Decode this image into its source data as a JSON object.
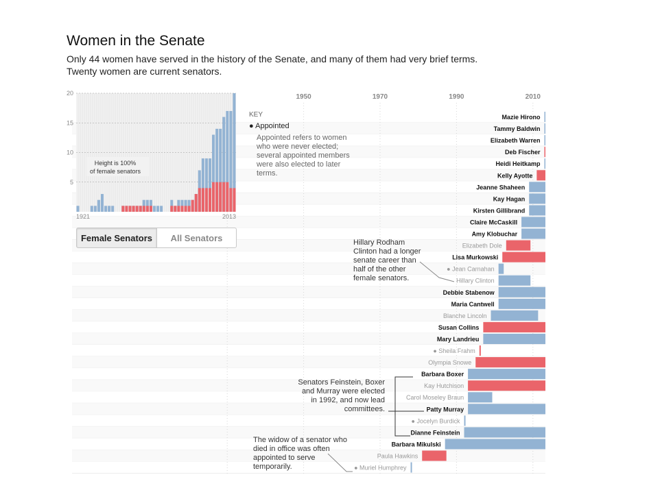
{
  "header": {
    "title": "Women in the Senate",
    "subtitle": "Only 44 women have served in the history of the Senate, and many of them had very brief terms. Twenty women are current senators."
  },
  "toggle": {
    "female_label": "Female Senators",
    "all_label": "All Senators",
    "active": "female"
  },
  "key": {
    "heading": "KEY",
    "bullet_label": "Appointed",
    "description": "Appointed refers to women who were never elected; several appointed members were also elected to later terms."
  },
  "annotations": {
    "clinton": "Hillary Rodham Clinton had a longer senate career than half of the other female senators.",
    "committees": "Senators Feinstein, Boxer and Murray were elected in 1992, and now lead committees.",
    "widow": "The widow of a senator who died in office was often appointed to serve temporarily."
  },
  "colors": {
    "elected": "#93b3d3",
    "appointed": "#ea646a",
    "grid": "#e6e6e6"
  },
  "chart_data": [
    {
      "type": "bar",
      "note": "Height is 100% of female senators",
      "x_tick_labels": [
        "1921",
        "2013"
      ],
      "y_ticks": [
        5,
        10,
        15,
        20
      ],
      "ylim": [
        0,
        20
      ],
      "x": [
        1921,
        1925,
        1927,
        1929,
        1931,
        1933,
        1935,
        1937,
        1939,
        1941,
        1943,
        1945,
        1947,
        1949,
        1951,
        1953,
        1955,
        1957,
        1959,
        1961,
        1963,
        1965,
        1967,
        1969,
        1971,
        1973,
        1975,
        1977,
        1979,
        1981,
        1983,
        1985,
        1987,
        1989,
        1991,
        1993,
        1995,
        1997,
        1999,
        2001,
        2003,
        2005,
        2007,
        2009,
        2011,
        2013
      ],
      "series": [
        {
          "values": [
            1,
            0,
            0,
            0,
            1,
            1,
            2,
            3,
            1,
            1,
            1,
            0,
            0,
            1,
            1,
            1,
            1,
            1,
            1,
            2,
            2,
            2,
            1,
            1,
            1,
            0,
            0,
            2,
            1,
            2,
            2,
            2,
            2,
            2,
            3,
            7,
            9,
            9,
            9,
            13,
            14,
            14,
            16,
            17,
            17,
            20
          ]
        },
        {
          "values": [
            0,
            0,
            0,
            0,
            0,
            0,
            0,
            0,
            0,
            0,
            0,
            0,
            0,
            1,
            1,
            1,
            1,
            1,
            1,
            1,
            1,
            1,
            0,
            0,
            0,
            0,
            0,
            1,
            1,
            1,
            1,
            1,
            1,
            2,
            3,
            4,
            4,
            4,
            4,
            5,
            5,
            5,
            5,
            5,
            4,
            4
          ]
        }
      ]
    },
    {
      "type": "bar",
      "x_axis_labels": [
        "1950",
        "1970",
        "1990",
        "2010"
      ],
      "categories": [
        "Mazie Hirono",
        "Tammy Baldwin",
        "Elizabeth Warren",
        "Deb Fischer",
        "Heidi Heitkamp",
        "Kelly Ayotte",
        "Jeanne Shaheen",
        "Kay Hagan",
        "Kirsten Gillibrand",
        "Claire McCaskill",
        "Amy Klobuchar",
        "Elizabeth Dole",
        "Lisa Murkowski",
        "Jean Carnahan",
        "Hillary Clinton",
        "Debbie Stabenow",
        "Maria Cantwell",
        "Blanche Lincoln",
        "Susan Collins",
        "Mary Landrieu",
        "Sheila Frahm",
        "Olympia Snowe",
        "Barbara Boxer",
        "Kay Hutchison",
        "Carol Moseley Braun",
        "Patty Murray",
        "Jocelyn Burdick",
        "Dianne Feinstein",
        "Barbara Mikulski",
        "Paula Hawkins",
        "Muriel Humphrey"
      ],
      "current": [
        true,
        true,
        true,
        true,
        true,
        true,
        true,
        true,
        true,
        true,
        true,
        false,
        true,
        false,
        false,
        true,
        true,
        false,
        true,
        true,
        false,
        false,
        true,
        false,
        false,
        true,
        false,
        true,
        true,
        false,
        false
      ],
      "appointed": [
        false,
        false,
        false,
        false,
        false,
        false,
        false,
        false,
        false,
        false,
        false,
        false,
        false,
        true,
        false,
        false,
        false,
        false,
        false,
        false,
        true,
        false,
        false,
        false,
        false,
        false,
        true,
        false,
        false,
        false,
        true
      ],
      "start": [
        2013,
        2013,
        2013,
        2013,
        2013,
        2011,
        2009,
        2009,
        2009,
        2007,
        2007,
        2003,
        2002,
        2001,
        2001,
        2001,
        2001,
        1999,
        1997,
        1997,
        1996,
        1995,
        1993,
        1993,
        1993,
        1993,
        1992,
        1992,
        1987,
        1981,
        1978
      ],
      "end": [
        2013,
        2013,
        2013,
        2013,
        2013,
        2013,
        2013,
        2013,
        2013,
        2013,
        2013,
        2009,
        2013,
        2002,
        2009,
        2013,
        2013,
        2011,
        2013,
        2013,
        1996,
        2013,
        2013,
        2013,
        1999,
        2013,
        1992,
        2013,
        2013,
        1987,
        1978
      ],
      "party": [
        "D",
        "D",
        "D",
        "R",
        "D",
        "R",
        "D",
        "D",
        "D",
        "D",
        "D",
        "R",
        "R",
        "D",
        "D",
        "D",
        "D",
        "D",
        "R",
        "D",
        "R",
        "R",
        "D",
        "R",
        "D",
        "D",
        "D",
        "D",
        "D",
        "R",
        "D"
      ]
    }
  ]
}
